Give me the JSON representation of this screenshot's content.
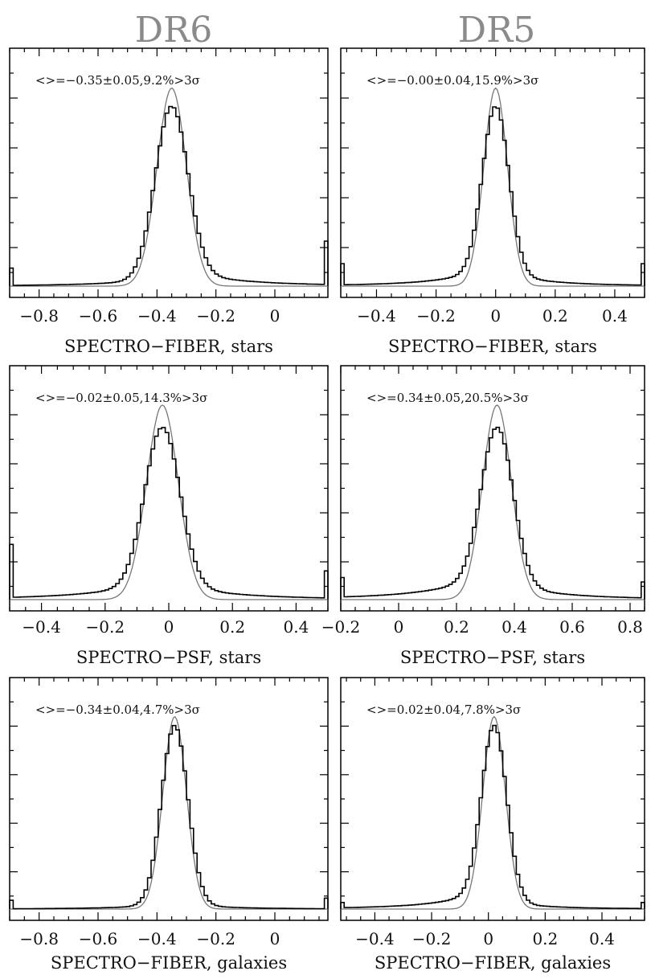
{
  "column_titles": [
    "DR6",
    "DR5"
  ],
  "chart_data": [
    {
      "type": "histogram",
      "column": "DR6",
      "annotation": "<>=−0.35±0.05,9.2%>3σ",
      "xlabel": "SPECTRO−FIBER, stars",
      "xlim": [
        -0.9,
        0.18
      ],
      "xticks": [
        -0.8,
        -0.6,
        -0.4,
        -0.2,
        0
      ],
      "xtick_labels": [
        "−0.8",
        "−0.6",
        "−0.4",
        "−0.2",
        "0"
      ],
      "mean": -0.35,
      "sigma": 0.05,
      "gauss_peak": 0.88,
      "hist_peak": 0.8,
      "wing_left": 0.03,
      "wing_right": 0.06,
      "edge_left": 0.08,
      "edge_right": 0.2
    },
    {
      "type": "histogram",
      "column": "DR5",
      "annotation": "<>=−0.00±0.04,15.9%>3σ",
      "xlabel": "SPECTRO−FIBER, stars",
      "xlim": [
        -0.52,
        0.5
      ],
      "xticks": [
        -0.4,
        -0.2,
        0,
        0.2,
        0.4
      ],
      "xtick_labels": [
        "−0.4",
        "−0.2",
        "0",
        "0.2",
        "0.4"
      ],
      "mean": -0.0,
      "sigma": 0.04,
      "gauss_peak": 0.88,
      "hist_peak": 0.8,
      "wing_left": 0.07,
      "wing_right": 0.05,
      "edge_left": 0.1,
      "edge_right": 0.1
    },
    {
      "type": "histogram",
      "column": "DR6",
      "annotation": "<>=−0.02±0.05,14.3%>3σ",
      "xlabel": "SPECTRO−PSF, stars",
      "xlim": [
        -0.5,
        0.5
      ],
      "xticks": [
        -0.4,
        -0.2,
        0,
        0.2,
        0.4
      ],
      "xtick_labels": [
        "−0.4",
        "−0.2",
        "0",
        "0.2",
        "0.4"
      ],
      "mean": -0.02,
      "sigma": 0.05,
      "gauss_peak": 0.88,
      "hist_peak": 0.78,
      "wing_left": 0.07,
      "wing_right": 0.06,
      "edge_left": 0.25,
      "edge_right": 0.13
    },
    {
      "type": "histogram",
      "column": "DR5",
      "annotation": "<>=0.34±0.05,20.5%>3σ",
      "xlabel": "SPECTRO−PSF, stars",
      "xlim": [
        -0.2,
        0.85
      ],
      "xticks": [
        -0.2,
        0,
        0.2,
        0.4,
        0.6,
        0.8
      ],
      "xtick_labels": [
        "−0.2",
        "0",
        "0.2",
        "0.4",
        "0.6",
        "0.8"
      ],
      "mean": 0.34,
      "sigma": 0.05,
      "gauss_peak": 0.88,
      "hist_peak": 0.78,
      "wing_left": 0.1,
      "wing_right": 0.06,
      "edge_left": 0.1,
      "edge_right": 0.08
    },
    {
      "type": "histogram",
      "column": "DR6",
      "annotation": "<>=−0.34±0.04,4.7%>3σ",
      "xlabel": "SPECTRO−FIBER, galaxies",
      "xlim": [
        -0.9,
        0.18
      ],
      "xticks": [
        -0.8,
        -0.6,
        -0.4,
        -0.2,
        0
      ],
      "xtick_labels": [
        "−0.8",
        "−0.6",
        "−0.4",
        "−0.2",
        "0"
      ],
      "mean": -0.34,
      "sigma": 0.04,
      "gauss_peak": 0.88,
      "hist_peak": 0.84,
      "wing_left": 0.02,
      "wing_right": 0.02,
      "edge_left": 0.04,
      "edge_right": 0.05
    },
    {
      "type": "histogram",
      "column": "DR5",
      "annotation": "<>=0.02±0.04,7.8%>3σ",
      "xlabel": "SPECTRO−FIBER, galaxies",
      "xlim": [
        -0.52,
        0.55
      ],
      "xticks": [
        -0.4,
        -0.2,
        0,
        0.2,
        0.4
      ],
      "xtick_labels": [
        "−0.4",
        "−0.2",
        "0",
        "0.2",
        "0.4"
      ],
      "mean": 0.02,
      "sigma": 0.04,
      "gauss_peak": 0.88,
      "hist_peak": 0.84,
      "wing_left": 0.08,
      "wing_right": 0.03,
      "edge_left": 0.03,
      "edge_right": 0.03
    }
  ],
  "shared_tick_labels": {
    "row2_right": "0.2",
    "row2_left_pair": "0.2"
  }
}
